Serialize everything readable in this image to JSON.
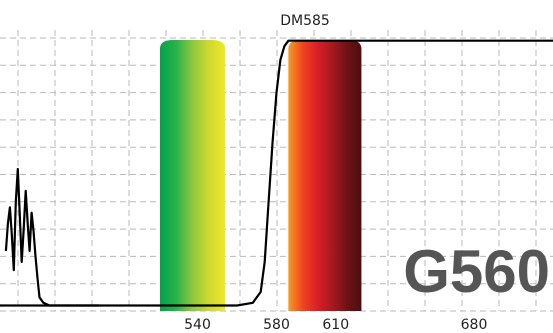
{
  "chart_data": {
    "type": "line",
    "title": "",
    "xlabel": "",
    "ylabel": "",
    "xlim": [
      440,
      720
    ],
    "ylim": [
      0,
      100
    ],
    "grid": true,
    "badge_text": "G560",
    "xticks": [
      540,
      580,
      610,
      680
    ],
    "series": [
      {
        "name": "DM585",
        "color": "#000000",
        "x": [
          440,
          530,
          560,
          568,
          572,
          574,
          576,
          578,
          580,
          582,
          584,
          586,
          588,
          590,
          720
        ],
        "y": [
          2,
          2,
          2,
          3,
          7,
          18,
          40,
          62,
          80,
          92,
          97,
          99,
          99,
          99,
          99
        ]
      },
      {
        "name": "",
        "color": "#000000",
        "x": [
          443,
          444,
          445,
          446,
          447,
          448,
          449,
          450,
          451,
          452,
          453,
          454,
          455,
          456,
          457,
          458,
          459,
          460,
          462,
          465,
          470,
          480,
          490
        ],
        "y": [
          22,
          32,
          38,
          28,
          15,
          40,
          52,
          35,
          18,
          30,
          44,
          32,
          22,
          36,
          29,
          20,
          12,
          5,
          3,
          2,
          2,
          2,
          2
        ]
      }
    ],
    "bands": [
      {
        "x0": 521,
        "x1": 554,
        "colors": [
          "#00a34a",
          "#2bb24a",
          "#8fc83e",
          "#cfd92e",
          "#f0e82a"
        ]
      },
      {
        "x0": 586,
        "x1": 623,
        "colors": [
          "#f59c22",
          "#ef4322",
          "#d81f26",
          "#a51a21",
          "#6f1215",
          "#4a0e10"
        ]
      }
    ]
  }
}
